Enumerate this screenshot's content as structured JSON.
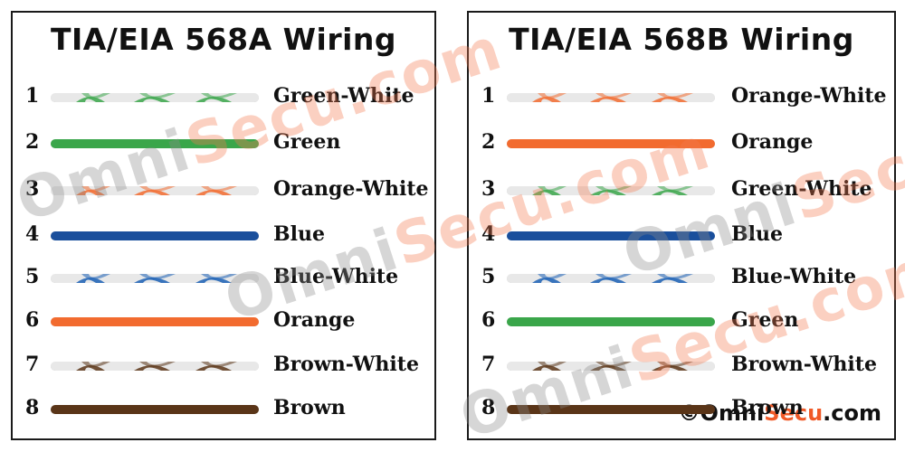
{
  "panels": [
    {
      "title": "TIA/EIA 568A Wiring",
      "wires": [
        {
          "pin": "1",
          "label": "Green-White",
          "color": "#3aa64a",
          "striped": true
        },
        {
          "pin": "2",
          "label": "Green",
          "color": "#3aa64a",
          "striped": false
        },
        {
          "pin": "3",
          "label": "Orange-White",
          "color": "#f26b2f",
          "striped": true
        },
        {
          "pin": "4",
          "label": "Blue",
          "color": "#1a4f9c",
          "striped": false
        },
        {
          "pin": "5",
          "label": "Blue-White",
          "color": "#1a5fb4",
          "striped": true
        },
        {
          "pin": "6",
          "label": "Orange",
          "color": "#f26b2f",
          "striped": false
        },
        {
          "pin": "7",
          "label": "Brown-White",
          "color": "#5a3518",
          "striped": true
        },
        {
          "pin": "8",
          "label": "Brown",
          "color": "#5a3518",
          "striped": false
        }
      ]
    },
    {
      "title": "TIA/EIA 568B Wiring",
      "wires": [
        {
          "pin": "1",
          "label": "Orange-White",
          "color": "#f26b2f",
          "striped": true
        },
        {
          "pin": "2",
          "label": "Orange",
          "color": "#f26b2f",
          "striped": false
        },
        {
          "pin": "3",
          "label": "Green-White",
          "color": "#3aa64a",
          "striped": true
        },
        {
          "pin": "4",
          "label": "Blue",
          "color": "#1a4f9c",
          "striped": false
        },
        {
          "pin": "5",
          "label": "Blue-White",
          "color": "#1a5fb4",
          "striped": true
        },
        {
          "pin": "6",
          "label": "Green",
          "color": "#3aa64a",
          "striped": false
        },
        {
          "pin": "7",
          "label": "Brown-White",
          "color": "#5a3518",
          "striped": true
        },
        {
          "pin": "8",
          "label": "Brown",
          "color": "#5a3518",
          "striped": false
        }
      ]
    }
  ],
  "watermark": {
    "text": "OmniSecu.com",
    "omni_color": "#8c8c8c",
    "secu_color": "#f47a50"
  },
  "copyright": {
    "symbol": "©",
    "omni": "Omni",
    "secu": "Secu",
    "dotcom": ".com"
  }
}
